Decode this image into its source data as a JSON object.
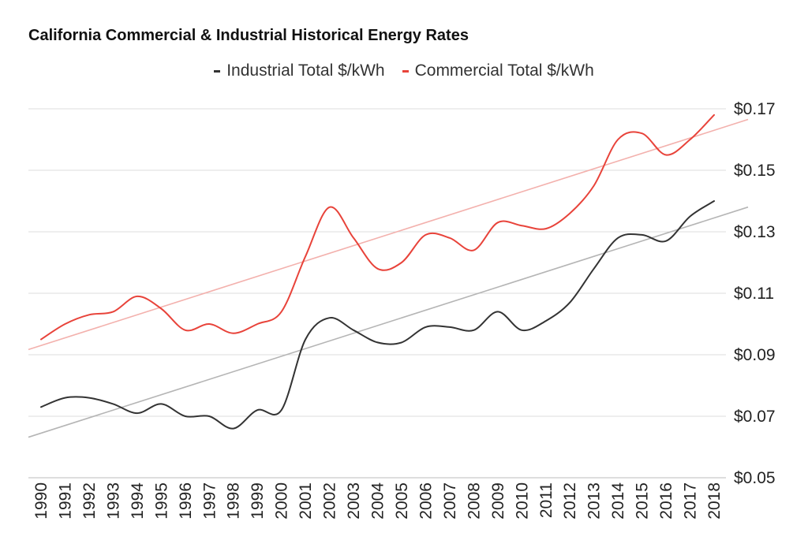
{
  "chart_data": {
    "type": "line",
    "title": "California Commercial & Industrial Historical Energy Rates",
    "x": [
      "1990",
      "1991",
      "1992",
      "1993",
      "1994",
      "1995",
      "1996",
      "1997",
      "1998",
      "1999",
      "2000",
      "2001",
      "2002",
      "2003",
      "2004",
      "2005",
      "2006",
      "2007",
      "2008",
      "2009",
      "2010",
      "2011",
      "2012",
      "2013",
      "2014",
      "2015",
      "2016",
      "2017",
      "2018"
    ],
    "series": [
      {
        "name": "Industrial Total $/kWh",
        "color": "#333333",
        "values": [
          0.073,
          0.076,
          0.076,
          0.074,
          0.071,
          0.074,
          0.07,
          0.07,
          0.066,
          0.072,
          0.072,
          0.095,
          0.102,
          0.098,
          0.094,
          0.094,
          0.099,
          0.099,
          0.098,
          0.104,
          0.098,
          0.101,
          0.107,
          0.118,
          0.128,
          0.129,
          0.127,
          0.135,
          0.14
        ]
      },
      {
        "name": "Commercial Total $/kWh",
        "color": "#e8433a",
        "values": [
          0.095,
          0.1,
          0.103,
          0.104,
          0.109,
          0.105,
          0.098,
          0.1,
          0.097,
          0.1,
          0.104,
          0.122,
          0.138,
          0.128,
          0.118,
          0.12,
          0.129,
          0.128,
          0.124,
          0.133,
          0.132,
          0.131,
          0.136,
          0.145,
          0.16,
          0.162,
          0.155,
          0.16,
          0.168
        ]
      }
    ],
    "trendlines": [
      {
        "series": "Industrial Total $/kWh",
        "color": "#b5b5b5",
        "start": 0.0645,
        "end": 0.1345
      },
      {
        "series": "Commercial Total $/kWh",
        "color": "#f3b1ad",
        "start": 0.093,
        "end": 0.163
      }
    ],
    "y_ticks": [
      "$0.05",
      "$0.07",
      "$0.09",
      "$0.11",
      "$0.13",
      "$0.15",
      "$0.17"
    ],
    "y_tick_values": [
      0.05,
      0.07,
      0.09,
      0.11,
      0.13,
      0.15,
      0.17
    ],
    "ylim": [
      0.05,
      0.17
    ],
    "grid": true,
    "legend_position": "top-center",
    "y_axis_position": "right"
  }
}
